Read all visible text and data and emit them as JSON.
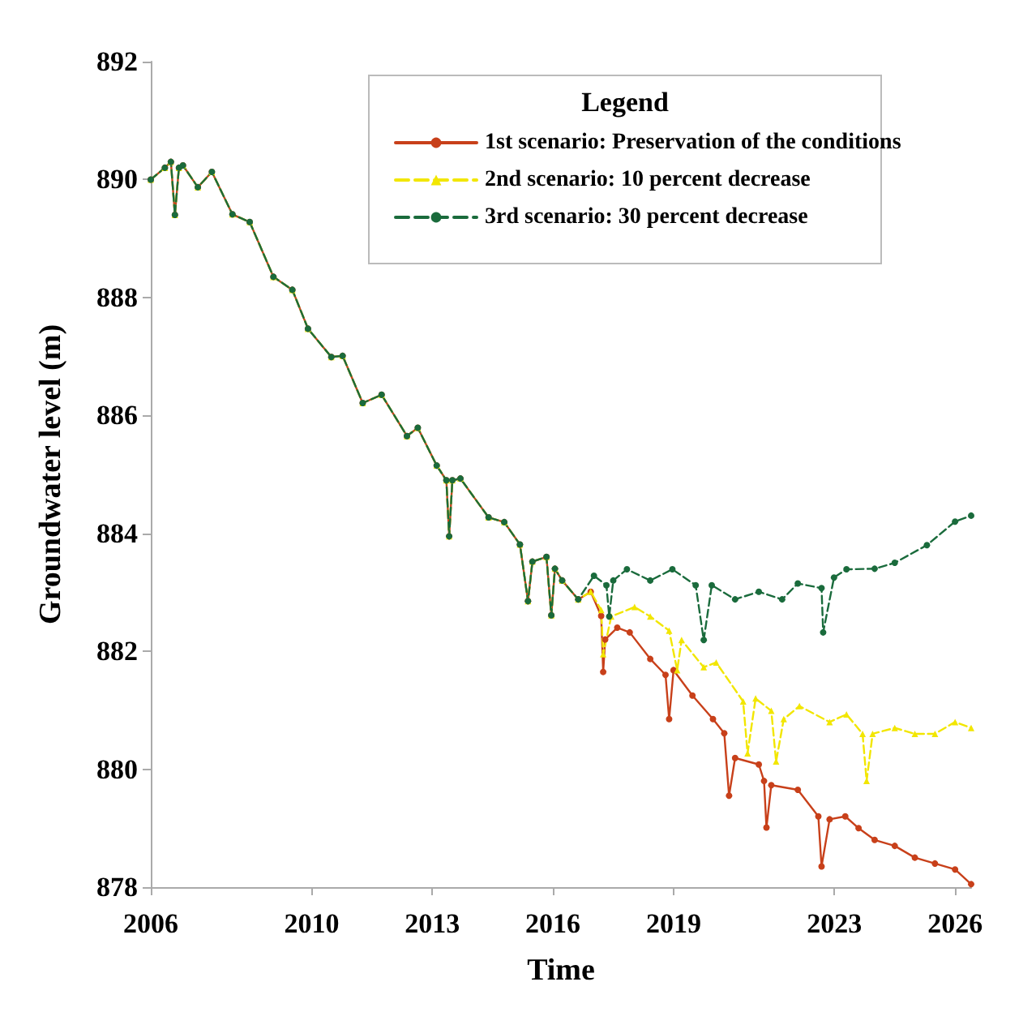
{
  "chart_data": {
    "type": "line",
    "xlabel": "Time",
    "ylabel": "Groundwater level (m)",
    "legend_title": "Legend",
    "legend": "top right",
    "grid": false,
    "xlim": [
      2006,
      2026.4
    ],
    "xticks": [
      2006,
      2010,
      2013,
      2016,
      2019,
      2023,
      2026
    ],
    "ylim": [
      878,
      892
    ],
    "yticks": [
      878,
      880,
      882,
      884,
      886,
      888,
      890,
      892
    ],
    "series": [
      {
        "name": "1st scenario: Preservation of the conditions",
        "color": "#c8401a",
        "marker": "circle",
        "line_style": "solid",
        "x": [
          2006,
          2006.35,
          2006.5,
          2006.6,
          2006.7,
          2006.8,
          2007.17,
          2007.52,
          2008.03,
          2008.46,
          2009.05,
          2009.52,
          2009.91,
          2010.49,
          2010.77,
          2011.27,
          2011.74,
          2012.37,
          2012.64,
          2013.11,
          2013.35,
          2013.42,
          2013.5,
          2013.7,
          2014.4,
          2014.79,
          2015.18,
          2015.38,
          2015.49,
          2015.84,
          2015.96,
          2016.05,
          2016.23,
          2016.63,
          2016.94,
          2017.2,
          2017.25,
          2017.3,
          2017.6,
          2017.91,
          2018.42,
          2018.8,
          2018.89,
          2019.0,
          2019.47,
          2019.98,
          2020.26,
          2020.38,
          2020.53,
          2021.12,
          2021.25,
          2021.31,
          2021.43,
          2022.09,
          2022.6,
          2022.68,
          2022.88,
          2023.27,
          2023.6,
          2024.0,
          2024.5,
          2025.0,
          2025.5,
          2026.0,
          2026.4
        ],
        "values": [
          890.0,
          890.2,
          890.3,
          889.4,
          890.2,
          890.24,
          889.87,
          890.13,
          889.41,
          889.28,
          888.35,
          888.13,
          887.47,
          886.99,
          887.01,
          886.21,
          886.35,
          885.65,
          885.79,
          885.15,
          884.9,
          883.95,
          884.9,
          884.93,
          884.27,
          884.19,
          883.81,
          882.85,
          883.52,
          883.6,
          882.61,
          883.4,
          883.2,
          882.88,
          883.01,
          882.6,
          881.65,
          882.2,
          882.4,
          882.32,
          881.87,
          881.6,
          880.85,
          881.68,
          881.25,
          880.85,
          880.61,
          879.55,
          880.19,
          880.08,
          879.8,
          879.01,
          879.73,
          879.65,
          879.2,
          878.35,
          879.15,
          879.2,
          879.0,
          878.8,
          878.7,
          878.5,
          878.4,
          878.3,
          878.05
        ]
      },
      {
        "name": "2nd scenario: 10 percent decrease",
        "color": "#f2e600",
        "marker": "triangle",
        "line_style": "dashed",
        "x": [
          2006,
          2006.35,
          2006.5,
          2006.6,
          2006.7,
          2006.8,
          2007.17,
          2007.52,
          2008.03,
          2008.46,
          2009.05,
          2009.52,
          2009.91,
          2010.49,
          2010.77,
          2011.27,
          2011.74,
          2012.37,
          2012.64,
          2013.11,
          2013.35,
          2013.42,
          2013.5,
          2013.7,
          2014.4,
          2014.79,
          2015.18,
          2015.38,
          2015.49,
          2015.84,
          2015.96,
          2016.05,
          2016.23,
          2016.63,
          2016.94,
          2017.2,
          2017.25,
          2017.45,
          2018.03,
          2018.42,
          2018.89,
          2019.09,
          2019.2,
          2019.75,
          2020.06,
          2020.73,
          2020.84,
          2021.04,
          2021.43,
          2021.55,
          2021.74,
          2022.13,
          2022.88,
          2023.3,
          2023.7,
          2023.8,
          2023.95,
          2024.5,
          2025.0,
          2025.5,
          2026.0,
          2026.4
        ],
        "values": [
          890.0,
          890.2,
          890.3,
          889.4,
          890.2,
          890.24,
          889.87,
          890.13,
          889.41,
          889.28,
          888.35,
          888.13,
          887.47,
          886.99,
          887.01,
          886.21,
          886.35,
          885.65,
          885.79,
          885.15,
          884.9,
          883.95,
          884.9,
          884.93,
          884.27,
          884.19,
          883.81,
          882.85,
          883.52,
          883.6,
          882.61,
          883.4,
          883.2,
          882.88,
          883.01,
          882.7,
          881.95,
          882.59,
          882.75,
          882.59,
          882.35,
          881.68,
          882.19,
          881.73,
          881.81,
          881.15,
          880.27,
          881.2,
          880.99,
          880.13,
          880.85,
          881.07,
          880.8,
          880.93,
          880.6,
          879.8,
          880.6,
          880.7,
          880.6,
          880.6,
          880.8,
          880.7
        ]
      },
      {
        "name": "3rd scenario: 30 percent decrease",
        "color": "#1a6b3c",
        "marker": "circle",
        "line_style": "dashed",
        "x": [
          2006,
          2006.35,
          2006.5,
          2006.6,
          2006.7,
          2006.8,
          2007.17,
          2007.52,
          2008.03,
          2008.46,
          2009.05,
          2009.52,
          2009.91,
          2010.49,
          2010.77,
          2011.27,
          2011.74,
          2012.37,
          2012.64,
          2013.11,
          2013.35,
          2013.42,
          2013.5,
          2013.7,
          2014.4,
          2014.79,
          2015.18,
          2015.38,
          2015.49,
          2015.84,
          2015.96,
          2016.05,
          2016.23,
          2016.63,
          2017.02,
          2017.33,
          2017.4,
          2017.5,
          2017.84,
          2018.42,
          2018.97,
          2019.55,
          2019.75,
          2019.95,
          2020.53,
          2021.12,
          2021.7,
          2022.09,
          2022.68,
          2022.72,
          2022.99,
          2023.3,
          2024.0,
          2024.5,
          2025.3,
          2026.0,
          2026.4
        ],
        "values": [
          890.0,
          890.2,
          890.3,
          889.4,
          890.2,
          890.24,
          889.87,
          890.13,
          889.41,
          889.28,
          888.35,
          888.13,
          887.47,
          886.99,
          887.01,
          886.21,
          886.35,
          885.65,
          885.79,
          885.15,
          884.9,
          883.95,
          884.9,
          884.93,
          884.27,
          884.19,
          883.81,
          882.85,
          883.52,
          883.6,
          882.61,
          883.4,
          883.2,
          882.88,
          883.28,
          883.12,
          882.59,
          883.2,
          883.39,
          883.2,
          883.39,
          883.12,
          882.19,
          883.12,
          882.88,
          883.01,
          882.88,
          883.15,
          883.07,
          882.32,
          883.25,
          883.39,
          883.4,
          883.5,
          883.8,
          884.2,
          884.3
        ]
      }
    ]
  }
}
